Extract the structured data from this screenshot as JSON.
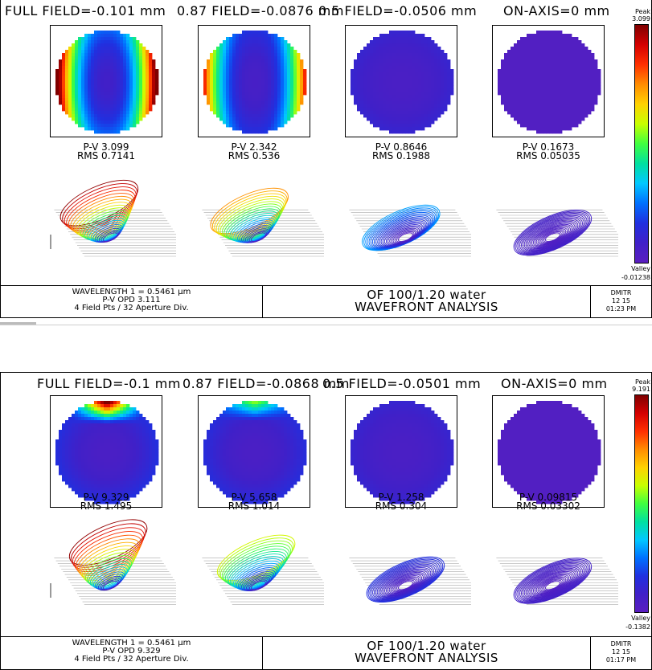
{
  "panels": [
    {
      "fields": [
        {
          "title": "FULL FIELD=-0.101 mm",
          "pv": "P-V 3.099",
          "rms": "RMS 0.7141",
          "map": "full",
          "surf": "tilt-high"
        },
        {
          "title": "0.87 FIELD=-0.0876 mm",
          "pv": "P-V 2.342",
          "rms": "RMS 0.536",
          "map": "mid87",
          "surf": "tilt-mid"
        },
        {
          "title": "0.5 FIELD=-0.0506 mm",
          "pv": "P-V 0.8646",
          "rms": "RMS 0.1988",
          "map": "flat",
          "surf": "tilt-low"
        },
        {
          "title": "ON-AXIS=0 mm",
          "pv": "P-V 0.1673",
          "rms": "RMS 0.05035",
          "map": "uniform",
          "surf": "flat"
        }
      ],
      "colorbar": {
        "peak_label": "Peak",
        "peak_value": "3.099",
        "valley_label": "Valley",
        "valley_value": "-0.01238"
      },
      "footer": {
        "wavelength": "WAVELENGTH 1 = 0.5461 µm",
        "pv_opd": "P-V OPD 3.111",
        "sampling": "4 Field Pts / 32 Aperture Div.",
        "title_line1": "OF 100/1.20 water",
        "title_line2": "WAVEFRONT ANALYSIS",
        "user": "DMITR",
        "date": "12 15",
        "time": "01:23 PM"
      }
    },
    {
      "fields": [
        {
          "title": "FULL FIELD=-0.1 mm",
          "pv": "P-V 9.329",
          "rms": "RMS 1.495",
          "map": "top-hot",
          "surf": "bowl-high"
        },
        {
          "title": "0.87 FIELD=-0.0868 mm",
          "pv": "P-V 5.658",
          "rms": "RMS 1.014",
          "map": "top-warm",
          "surf": "bowl-mid"
        },
        {
          "title": "0.5 FIELD=-0.0501 mm",
          "pv": "P-V 1.258",
          "rms": "RMS 0.304",
          "map": "flat",
          "surf": "flat-low"
        },
        {
          "title": "ON-AXIS=0 mm",
          "pv": "P-V 0.09815",
          "rms": "RMS 0.03302",
          "map": "uniform",
          "surf": "flat"
        }
      ],
      "colorbar": {
        "peak_label": "Peak",
        "peak_value": "9.191",
        "valley_label": "Valley",
        "valley_value": "-0.1382"
      },
      "footer": {
        "wavelength": "WAVELENGTH 1 = 0.5461 µm",
        "pv_opd": "P-V OPD 9.329",
        "sampling": "4 Field Pts / 32 Aperture Div.",
        "title_line1": "OF 100/1.20 water",
        "title_line2": "WAVEFRONT ANALYSIS",
        "user": "DMITR",
        "date": "12 15",
        "time": "01:17 PM"
      }
    }
  ],
  "colors": {
    "spectrum": [
      "#7f0000",
      "#d40000",
      "#ff3000",
      "#ff8c00",
      "#ffd200",
      "#c8ff00",
      "#40ff40",
      "#00e0a0",
      "#00c8ff",
      "#0070ff",
      "#2030e0",
      "#4020c8",
      "#5a1ec0"
    ]
  }
}
